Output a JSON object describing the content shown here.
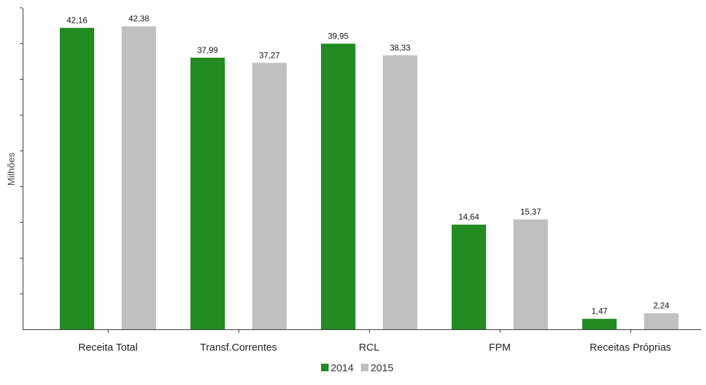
{
  "chart_data": {
    "type": "bar",
    "title": "",
    "xlabel": "",
    "ylabel": "Milhões",
    "ylim": [
      0,
      45
    ],
    "grid": false,
    "legend_position": "bottom",
    "categories": [
      "Receita Total",
      "Transf.Correntes",
      "RCL",
      "FPM",
      "Receitas Próprias"
    ],
    "series": [
      {
        "name": "2014",
        "color": "#228b22",
        "values": [
          42.16,
          37.99,
          39.95,
          14.64,
          1.47
        ],
        "labels": [
          "42,16",
          "37,99",
          "39,95",
          "14,64",
          "1,47"
        ]
      },
      {
        "name": "2015",
        "color": "#c0c0c0",
        "values": [
          42.38,
          37.27,
          38.33,
          15.37,
          2.24
        ],
        "labels": [
          "42,38",
          "37,27",
          "38,33",
          "15,37",
          "2,24"
        ]
      }
    ]
  }
}
